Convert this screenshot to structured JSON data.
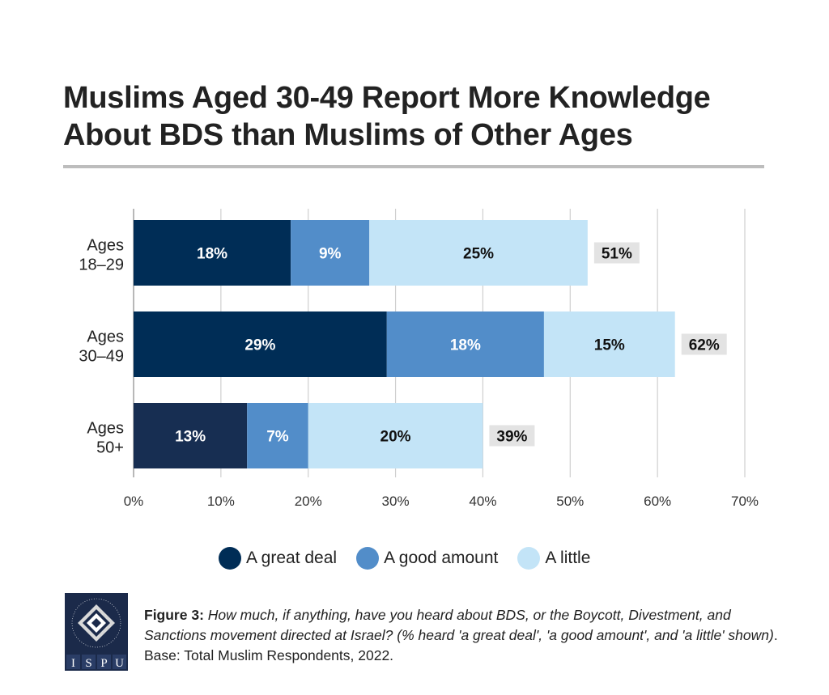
{
  "chart_data": {
    "type": "bar",
    "orientation": "horizontal",
    "stacked": true,
    "title": "Muslims Aged 30-49 Report More Knowledge About BDS than Muslims of Other Ages",
    "categories": [
      [
        "Ages",
        "18–29"
      ],
      [
        "Ages",
        "30–49"
      ],
      [
        "Ages",
        "50+"
      ]
    ],
    "series": [
      {
        "name": "A great deal",
        "values": [
          18,
          29,
          13
        ],
        "labels": [
          "18%",
          "29%",
          "13%"
        ],
        "color": "#002d56"
      },
      {
        "name": "A good amount",
        "values": [
          9,
          18,
          7
        ],
        "labels": [
          "9%",
          "18%",
          "7%"
        ],
        "color": "#528dc9"
      },
      {
        "name": "A little",
        "values": [
          25,
          15,
          20
        ],
        "labels": [
          "25%",
          "15%",
          "20%"
        ],
        "color": "#c3e4f7"
      }
    ],
    "totals": [
      "51%",
      "62%",
      "39%"
    ],
    "xlim": [
      0,
      70
    ],
    "xticks": [
      "0%",
      "10%",
      "20%",
      "30%",
      "40%",
      "50%",
      "60%",
      "70%"
    ],
    "grid": true,
    "legend_position": "bottom",
    "xlabel": "",
    "ylabel": ""
  },
  "title_lines": [
    "Muslims Aged 30-49 Report More Knowledge",
    "About BDS than Muslims of Other Ages"
  ],
  "caption": {
    "label": "Figure 3:",
    "question": "How much, if anything, have you heard about BDS, or the Boycott, Divestment, and Sanctions movement directed at Israel? (% heard 'a great deal', 'a good amount', and 'a little' shown)",
    "base": ". Base: Total Muslim Respondents, 2022."
  },
  "logo": {
    "ring_text": "INSTITUTE FOR SOCIAL POLICY AND UNDERSTANDING",
    "letters": [
      "I",
      "S",
      "P",
      "U"
    ]
  }
}
